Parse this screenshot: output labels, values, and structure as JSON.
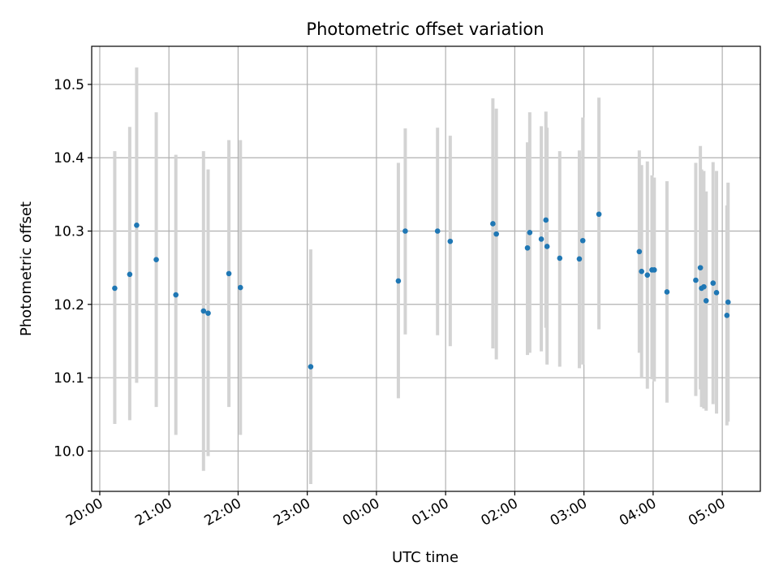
{
  "chart_data": {
    "type": "scatter",
    "title": "Photometric offset variation",
    "xlabel": "UTC time",
    "ylabel": "Photometric offset",
    "xlim": [
      "19:53",
      "05:33"
    ],
    "ylim": [
      9.945,
      10.552
    ],
    "grid": true,
    "x_ticks": [
      "20:00",
      "21:00",
      "22:00",
      "23:00",
      "00:00",
      "01:00",
      "02:00",
      "03:00",
      "04:00",
      "05:00"
    ],
    "y_ticks": [
      10.0,
      10.1,
      10.2,
      10.3,
      10.4,
      10.5
    ],
    "marker_color": "#1f77b4",
    "errorbar_color": "#d3d3d3",
    "points": [
      {
        "t": "20:13",
        "y": 10.222,
        "lo": 10.037,
        "hi": 10.409
      },
      {
        "t": "20:26",
        "y": 10.241,
        "lo": 10.042,
        "hi": 10.442
      },
      {
        "t": "20:32",
        "y": 10.308,
        "lo": 10.093,
        "hi": 10.523
      },
      {
        "t": "20:49",
        "y": 10.261,
        "lo": 10.06,
        "hi": 10.462
      },
      {
        "t": "21:06",
        "y": 10.213,
        "lo": 10.022,
        "hi": 10.404
      },
      {
        "t": "21:30",
        "y": 10.191,
        "lo": 9.973,
        "hi": 10.409
      },
      {
        "t": "21:34",
        "y": 10.188,
        "lo": 9.993,
        "hi": 10.384
      },
      {
        "t": "21:52",
        "y": 10.242,
        "lo": 10.06,
        "hi": 10.424
      },
      {
        "t": "22:02",
        "y": 10.223,
        "lo": 10.022,
        "hi": 10.424
      },
      {
        "t": "23:03",
        "y": 10.115,
        "lo": 9.955,
        "hi": 10.275
      },
      {
        "t": "00:19",
        "y": 10.232,
        "lo": 10.072,
        "hi": 10.393
      },
      {
        "t": "00:25",
        "y": 10.3,
        "lo": 10.159,
        "hi": 10.44
      },
      {
        "t": "00:53",
        "y": 10.3,
        "lo": 10.158,
        "hi": 10.441
      },
      {
        "t": "01:04",
        "y": 10.286,
        "lo": 10.143,
        "hi": 10.43
      },
      {
        "t": "01:41",
        "y": 10.31,
        "lo": 10.14,
        "hi": 10.481
      },
      {
        "t": "01:44",
        "y": 10.296,
        "lo": 10.125,
        "hi": 10.467
      },
      {
        "t": "02:11",
        "y": 10.277,
        "lo": 10.131,
        "hi": 10.421
      },
      {
        "t": "02:13",
        "y": 10.298,
        "lo": 10.134,
        "hi": 10.462
      },
      {
        "t": "02:23",
        "y": 10.289,
        "lo": 10.136,
        "hi": 10.443
      },
      {
        "t": "02:27",
        "y": 10.315,
        "lo": 10.168,
        "hi": 10.463
      },
      {
        "t": "02:28",
        "y": 10.279,
        "lo": 10.118,
        "hi": 10.441
      },
      {
        "t": "02:39",
        "y": 10.263,
        "lo": 10.115,
        "hi": 10.409
      },
      {
        "t": "02:56",
        "y": 10.262,
        "lo": 10.113,
        "hi": 10.41
      },
      {
        "t": "02:59",
        "y": 10.287,
        "lo": 10.118,
        "hi": 10.455
      },
      {
        "t": "03:13",
        "y": 10.323,
        "lo": 10.166,
        "hi": 10.482
      },
      {
        "t": "03:48",
        "y": 10.272,
        "lo": 10.134,
        "hi": 10.41
      },
      {
        "t": "03:50",
        "y": 10.245,
        "lo": 10.1,
        "hi": 10.39
      },
      {
        "t": "03:55",
        "y": 10.24,
        "lo": 10.085,
        "hi": 10.395
      },
      {
        "t": "03:59",
        "y": 10.247,
        "lo": 10.098,
        "hi": 10.376
      },
      {
        "t": "04:01",
        "y": 10.247,
        "lo": 10.095,
        "hi": 10.373
      },
      {
        "t": "04:12",
        "y": 10.217,
        "lo": 10.066,
        "hi": 10.368
      },
      {
        "t": "04:37",
        "y": 10.233,
        "lo": 10.075,
        "hi": 10.393
      },
      {
        "t": "04:41",
        "y": 10.25,
        "lo": 10.084,
        "hi": 10.416
      },
      {
        "t": "04:42",
        "y": 10.222,
        "lo": 10.06,
        "hi": 10.384
      },
      {
        "t": "04:44",
        "y": 10.224,
        "lo": 10.058,
        "hi": 10.382
      },
      {
        "t": "04:46",
        "y": 10.205,
        "lo": 10.055,
        "hi": 10.354
      },
      {
        "t": "04:52",
        "y": 10.229,
        "lo": 10.064,
        "hi": 10.394
      },
      {
        "t": "04:55",
        "y": 10.216,
        "lo": 10.051,
        "hi": 10.382
      },
      {
        "t": "05:04",
        "y": 10.185,
        "lo": 10.035,
        "hi": 10.335
      },
      {
        "t": "05:05",
        "y": 10.203,
        "lo": 10.04,
        "hi": 10.366
      }
    ]
  }
}
